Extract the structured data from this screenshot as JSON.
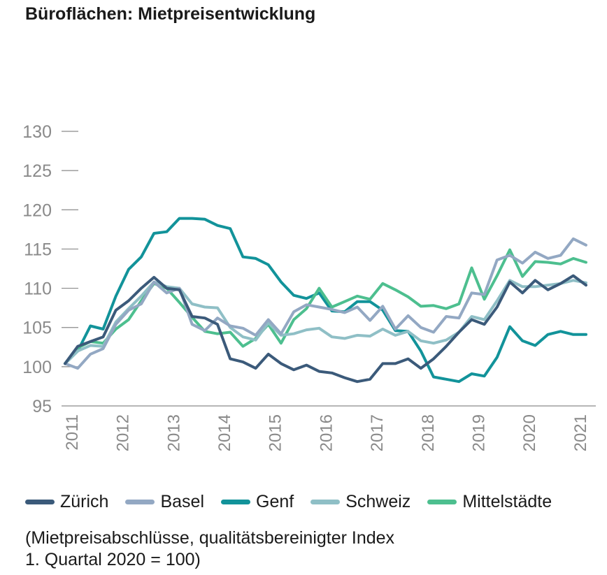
{
  "title": "Büroflächen: Mietpreisentwicklung",
  "note": {
    "line1": "(Mietpreisabschlüsse, qualitätsbereinigter Index",
    "line2": "1. Quartal 2020 = 100)"
  },
  "colors": {
    "zurich": "#3b5a7a",
    "basel": "#93a8c3",
    "genf": "#12939a",
    "schweiz": "#8fbfc6",
    "mittelstaedte": "#4dbf8f",
    "axis": "#8a8a8a"
  },
  "chart_data": {
    "type": "line",
    "title": "Büroflächen: Mietpreisentwicklung",
    "ylim": [
      95,
      130
    ],
    "yticks": [
      95,
      100,
      105,
      110,
      115,
      120,
      125,
      130
    ],
    "xtick_labels": [
      "2011",
      "2012",
      "2013",
      "2014",
      "2015",
      "2016",
      "2017",
      "2018",
      "2019",
      "2020",
      "2021"
    ],
    "x_start": "2011 Q1",
    "x_end": "2021 Q2",
    "grid": false,
    "legend_position": "bottom",
    "series": [
      {
        "name": "Zürich",
        "color": "#3b5a7a",
        "values": [
          100.4,
          102.6,
          103.2,
          103.8,
          107.2,
          108.4,
          110.0,
          111.4,
          110.0,
          109.8,
          106.4,
          106.2,
          105.4,
          101.0,
          100.6,
          99.8,
          101.6,
          100.4,
          99.6,
          100.2,
          99.4,
          99.2,
          98.6,
          98.1,
          98.4,
          100.4,
          100.4,
          101.0,
          99.8,
          101.0,
          102.6,
          104.4,
          106.0,
          105.4,
          107.6,
          110.8,
          109.4,
          111.0,
          109.8,
          110.6,
          111.6,
          110.4
        ]
      },
      {
        "name": "Basel",
        "color": "#93a8c3",
        "values": [
          100.4,
          99.8,
          101.6,
          102.3,
          105.4,
          107.2,
          108.0,
          110.8,
          109.4,
          110.0,
          105.4,
          104.6,
          106.2,
          105.2,
          104.9,
          104.0,
          106.0,
          104.2,
          107.0,
          107.9,
          107.6,
          107.3,
          106.9,
          107.6,
          105.9,
          107.7,
          104.8,
          106.5,
          105.0,
          104.4,
          106.4,
          106.2,
          109.4,
          109.2,
          113.6,
          114.2,
          113.2,
          114.6,
          113.8,
          114.2,
          116.3,
          115.5
        ]
      },
      {
        "name": "Genf",
        "color": "#12939a",
        "values": [
          100.4,
          102.0,
          105.2,
          104.8,
          109.0,
          112.4,
          114.0,
          117.0,
          117.2,
          118.9,
          118.9,
          118.8,
          118.0,
          117.6,
          114.0,
          113.8,
          113.0,
          110.8,
          109.1,
          108.7,
          109.4,
          107.1,
          107.0,
          108.3,
          108.3,
          107.2,
          104.6,
          104.5,
          102.0,
          98.7,
          98.4,
          98.1,
          99.1,
          98.8,
          101.2,
          105.1,
          103.3,
          102.7,
          104.1,
          104.5,
          104.1,
          104.1
        ]
      },
      {
        "name": "Schweiz",
        "color": "#8fbfc6",
        "values": [
          100.4,
          102.0,
          102.7,
          102.6,
          105.7,
          107.4,
          109.0,
          110.8,
          110.2,
          110.0,
          108.0,
          107.6,
          107.5,
          105.0,
          103.8,
          103.4,
          105.6,
          104.0,
          104.2,
          104.7,
          104.9,
          103.8,
          103.6,
          104.0,
          103.9,
          104.8,
          104.0,
          104.5,
          103.3,
          103.0,
          103.4,
          104.4,
          106.4,
          106.0,
          108.4,
          111.0,
          110.2,
          110.2,
          110.4,
          110.6,
          111.0,
          110.7
        ]
      },
      {
        "name": "Mittelstädte",
        "color": "#4dbf8f",
        "values": [
          100.4,
          102.4,
          103.2,
          103.0,
          104.8,
          106.0,
          108.4,
          110.6,
          110.0,
          108.2,
          106.3,
          104.5,
          104.2,
          104.4,
          102.6,
          103.6,
          105.4,
          103.0,
          106.0,
          107.4,
          110.0,
          107.6,
          108.3,
          109.0,
          108.6,
          110.6,
          109.8,
          108.9,
          107.7,
          107.8,
          107.4,
          108.0,
          112.6,
          108.6,
          111.6,
          114.9,
          111.5,
          113.4,
          113.3,
          113.1,
          113.8,
          113.3
        ]
      }
    ]
  }
}
